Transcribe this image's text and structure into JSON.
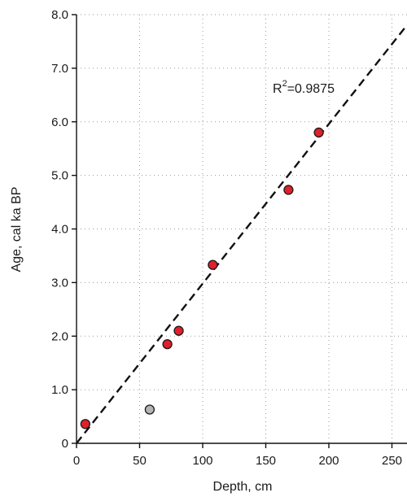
{
  "chart_data": {
    "type": "scatter",
    "xlabel": "Depth, cm",
    "ylabel": "Age, cal ka BP",
    "xlim": [
      0,
      260
    ],
    "ylim": [
      0,
      8
    ],
    "x_ticks": [
      0,
      50,
      100,
      150,
      200,
      250
    ],
    "x_tick_labels": [
      "0",
      "50",
      "100",
      "150",
      "200",
      "250"
    ],
    "y_ticks": [
      0,
      1,
      2,
      3,
      4,
      5,
      6,
      7,
      8
    ],
    "y_tick_labels": [
      "0",
      "1.0",
      "2.0",
      "3.0",
      "4.0",
      "5.0",
      "6.0",
      "7.0",
      "8.0"
    ],
    "grid": "dotted",
    "series": [
      {
        "color": "#e0202a",
        "points": [
          {
            "x": 7,
            "y": 0.36
          },
          {
            "x": 72,
            "y": 1.85
          },
          {
            "x": 81,
            "y": 2.1
          },
          {
            "x": 108,
            "y": 3.33
          },
          {
            "x": 168,
            "y": 4.73
          },
          {
            "x": 192,
            "y": 5.8
          }
        ]
      },
      {
        "color": "#b4b4b4",
        "points": [
          {
            "x": 58,
            "y": 0.63
          }
        ]
      }
    ],
    "trendline": {
      "style": "dashed",
      "color": "#111111",
      "slope": 0.0298,
      "intercept": 0,
      "label_base": "R",
      "label_sup": "2",
      "label_value": "=0.9875"
    }
  }
}
